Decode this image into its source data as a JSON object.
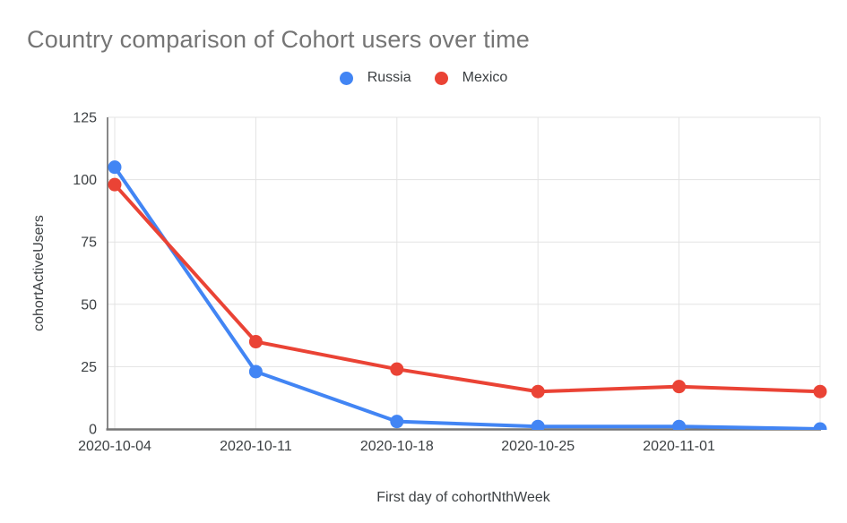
{
  "chart_data": {
    "type": "line",
    "title": "Country comparison of Cohort users over time",
    "xlabel": "First day of cohortNthWeek",
    "ylabel": "cohortActiveUsers",
    "x_tick_labels": [
      "2020-10-04",
      "2020-10-11",
      "2020-10-18",
      "2020-10-25",
      "2020-11-01",
      ""
    ],
    "yticks": [
      0,
      25,
      50,
      75,
      100,
      125
    ],
    "ylim": [
      0,
      125
    ],
    "grid": true,
    "legend_position": "top-center",
    "series": [
      {
        "name": "Russia",
        "color": "#4285F4",
        "values": [
          105,
          23,
          3,
          1,
          1,
          0
        ]
      },
      {
        "name": "Mexico",
        "color": "#EA4335",
        "values": [
          98,
          35,
          24,
          15,
          17,
          15
        ]
      }
    ],
    "colors": {
      "title_text": "#757575",
      "axis_text": "#3c4043",
      "gridline": "#e3e3e3",
      "y_axis_line": "#616161",
      "x_baseline": "#757575",
      "background": "#ffffff"
    }
  }
}
